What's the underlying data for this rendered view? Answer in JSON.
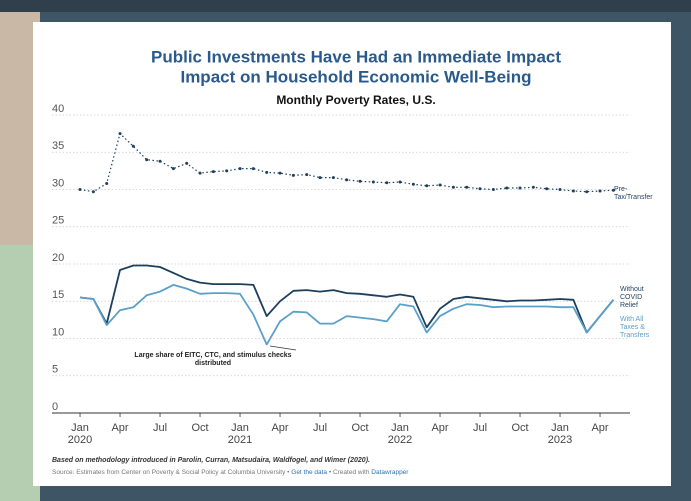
{
  "chart_data": {
    "type": "line",
    "title": [
      "Public Investments Have Had an Immediate Impact",
      "Impact on Household Economic Well-Being"
    ],
    "subtitle": "Monthly Poverty Rates, U.S.",
    "annotation": "Large share of EITC, CTC, and stimulus checks distributed",
    "note": "Based on methodology introduced in Parolin, Curran, Matsudaira, Waldfogel, and Wimer (2020).",
    "source": [
      "Source: Estimates from Center on Poverty & Social Policy at Columbia University •",
      "Get the data",
      "• Created with",
      "Datawrapper"
    ],
    "x": [
      "2020-01",
      "2020-02",
      "2020-03",
      "2020-04",
      "2020-05",
      "2020-06",
      "2020-07",
      "2020-08",
      "2020-09",
      "2020-10",
      "2020-11",
      "2020-12",
      "2021-01",
      "2021-02",
      "2021-03",
      "2021-04",
      "2021-05",
      "2021-06",
      "2021-07",
      "2021-08",
      "2021-09",
      "2021-10",
      "2021-11",
      "2021-12",
      "2022-01",
      "2022-02",
      "2022-03",
      "2022-04",
      "2022-05",
      "2022-06",
      "2022-07",
      "2022-08",
      "2022-09",
      "2022-10",
      "2022-11",
      "2022-12",
      "2023-01",
      "2023-02",
      "2023-03",
      "2023-04",
      "2023-05"
    ],
    "xlim": [
      "2019-12",
      "2023-06"
    ],
    "xticks": [
      {
        "value": "2020-01",
        "label": "Jan 2020"
      },
      {
        "value": "2020-04",
        "label": "Apr"
      },
      {
        "value": "2020-07",
        "label": "Jul"
      },
      {
        "value": "2020-10",
        "label": "Oct"
      },
      {
        "value": "2021-01",
        "label": "Jan 2021"
      },
      {
        "value": "2021-04",
        "label": "Apr"
      },
      {
        "value": "2021-07",
        "label": "Jul"
      },
      {
        "value": "2021-10",
        "label": "Oct"
      },
      {
        "value": "2022-01",
        "label": "Jan 2022"
      },
      {
        "value": "2022-04",
        "label": "Apr"
      },
      {
        "value": "2022-07",
        "label": "Jul"
      },
      {
        "value": "2022-10",
        "label": "Oct"
      },
      {
        "value": "2023-01",
        "label": "Jan 2023"
      },
      {
        "value": "2023-04",
        "label": "Apr"
      }
    ],
    "ylim": [
      0,
      40
    ],
    "yticks": [
      0,
      5,
      10,
      15,
      20,
      25,
      30,
      35,
      40
    ],
    "grid": true,
    "series": [
      {
        "name": "Pre-Tax/Transfer",
        "color": "#1d3f5e",
        "style": "dotted",
        "values": [
          30,
          29.7,
          30.8,
          37.5,
          35.8,
          34,
          33.8,
          32.8,
          33.5,
          32.2,
          32.4,
          32.5,
          32.8,
          32.8,
          32.3,
          32.2,
          31.9,
          32,
          31.6,
          31.6,
          31.3,
          31.1,
          31,
          30.9,
          31,
          30.7,
          30.5,
          30.6,
          30.3,
          30.3,
          30.1,
          30,
          30.2,
          30.2,
          30.3,
          30.1,
          30,
          29.8,
          29.7,
          29.8,
          29.9
        ]
      },
      {
        "name": "Without COVID Relief",
        "color": "#1d3f5e",
        "style": "solid",
        "values": [
          15.5,
          15.3,
          12,
          19.2,
          19.8,
          19.8,
          19.6,
          18.8,
          18,
          17.5,
          17.3,
          17.3,
          17.3,
          17.2,
          13,
          15,
          16.4,
          16.5,
          16.3,
          16.5,
          16.1,
          16,
          15.8,
          15.6,
          15.9,
          15.6,
          11.5,
          14,
          15.3,
          15.6,
          15.4,
          15.2,
          15,
          15.1,
          15.1,
          15.2,
          15.3,
          15.2,
          10.8,
          13,
          15.2
        ]
      },
      {
        "name": "With All Taxes & Transfers",
        "color": "#5aa0c8",
        "style": "solid",
        "values": [
          15.5,
          15.3,
          11.8,
          13.8,
          14.2,
          15.8,
          16.3,
          17.2,
          16.7,
          16,
          16.1,
          16.1,
          16,
          13.2,
          9.2,
          12.3,
          13.6,
          13.5,
          12,
          12,
          13,
          12.8,
          12.6,
          12.3,
          14.6,
          14.3,
          10.8,
          13,
          14,
          14.6,
          14.5,
          14.2,
          14.3,
          14.3,
          14.3,
          14.3,
          14.2,
          14.2,
          10.8,
          13,
          15.2
        ]
      }
    ]
  }
}
